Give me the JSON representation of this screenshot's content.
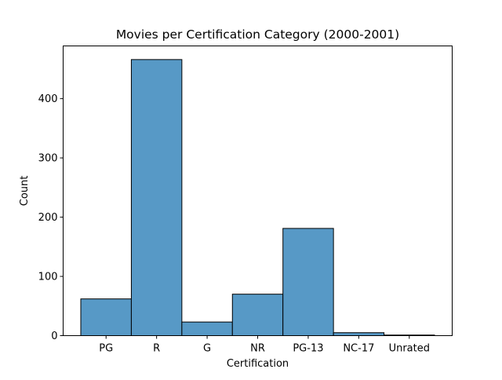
{
  "chart_data": {
    "type": "bar",
    "title": "Movies per Certification Category (2000-2001)",
    "xlabel": "Certification",
    "ylabel": "Count",
    "categories": [
      "PG",
      "R",
      "G",
      "NR",
      "PG-13",
      "NC-17",
      "Unrated"
    ],
    "values": [
      62,
      466,
      23,
      70,
      181,
      5,
      1
    ],
    "ylim": [
      0,
      489
    ],
    "yticks": [
      0,
      100,
      200,
      300,
      400
    ],
    "grid": false,
    "bar_color": "#5799c6",
    "edge_color": "#000000"
  }
}
